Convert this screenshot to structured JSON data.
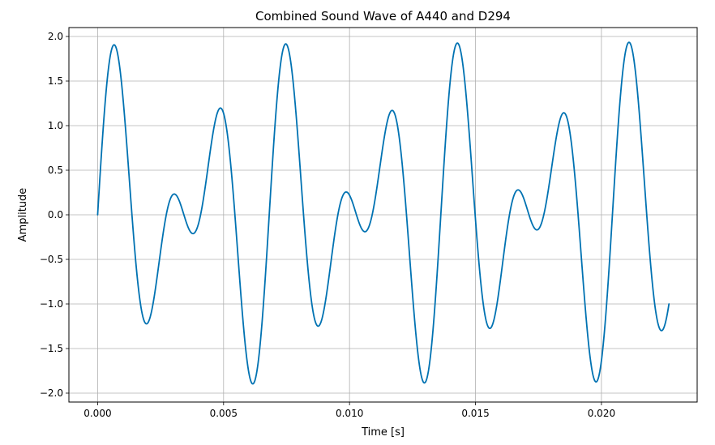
{
  "chart_data": {
    "type": "line",
    "title": "Combined Sound Wave of A440 and D294",
    "xlabel": "Time [s]",
    "ylabel": "Amplitude",
    "xlim": [
      -0.00114,
      0.0238
    ],
    "ylim": [
      -2.1,
      2.1
    ],
    "grid": true,
    "xticks": [
      0.0,
      0.005,
      0.01,
      0.015,
      0.02
    ],
    "xtick_labels": [
      "0.000",
      "0.005",
      "0.010",
      "0.015",
      "0.020"
    ],
    "yticks": [
      -2.0,
      -1.5,
      -1.0,
      -0.5,
      0.0,
      0.5,
      1.0,
      1.5,
      2.0
    ],
    "ytick_labels": [
      "−2.0",
      "−1.5",
      "−1.0",
      "−0.5",
      "0.0",
      "0.5",
      "1.0",
      "1.5",
      "2.0"
    ],
    "series": [
      {
        "color": "#0072b2",
        "components": [
          {
            "frequency_hz": 440,
            "amplitude": 1.0
          },
          {
            "frequency_hz": 294,
            "amplitude": 1.0
          }
        ],
        "x_range": [
          0.0,
          0.02268
        ],
        "sample_count": 1001
      }
    ]
  }
}
